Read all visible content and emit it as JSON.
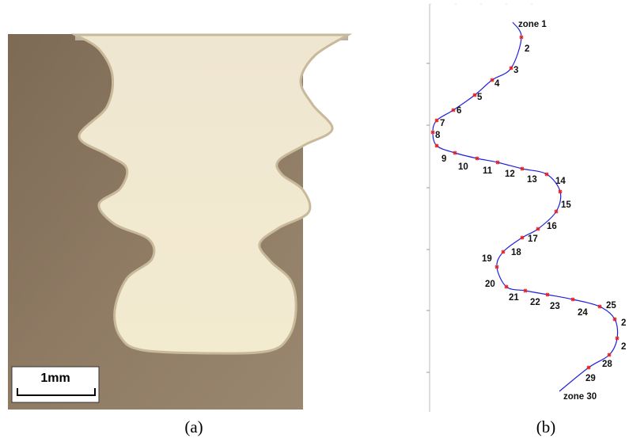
{
  "panel_a": {
    "scale_bar": "1mm",
    "caption": "(a)"
  },
  "panel_b": {
    "zones": [
      "zone 1",
      "2",
      "3",
      "4",
      "5",
      "6",
      "7",
      "8",
      "9",
      "10",
      "11",
      "12",
      "13",
      "14",
      "15",
      "16",
      "17",
      "18",
      "19",
      "20",
      "21",
      "22",
      "23",
      "24",
      "25",
      "2",
      "2",
      "28",
      "29",
      "zone 30"
    ],
    "caption": "(b)"
  }
}
